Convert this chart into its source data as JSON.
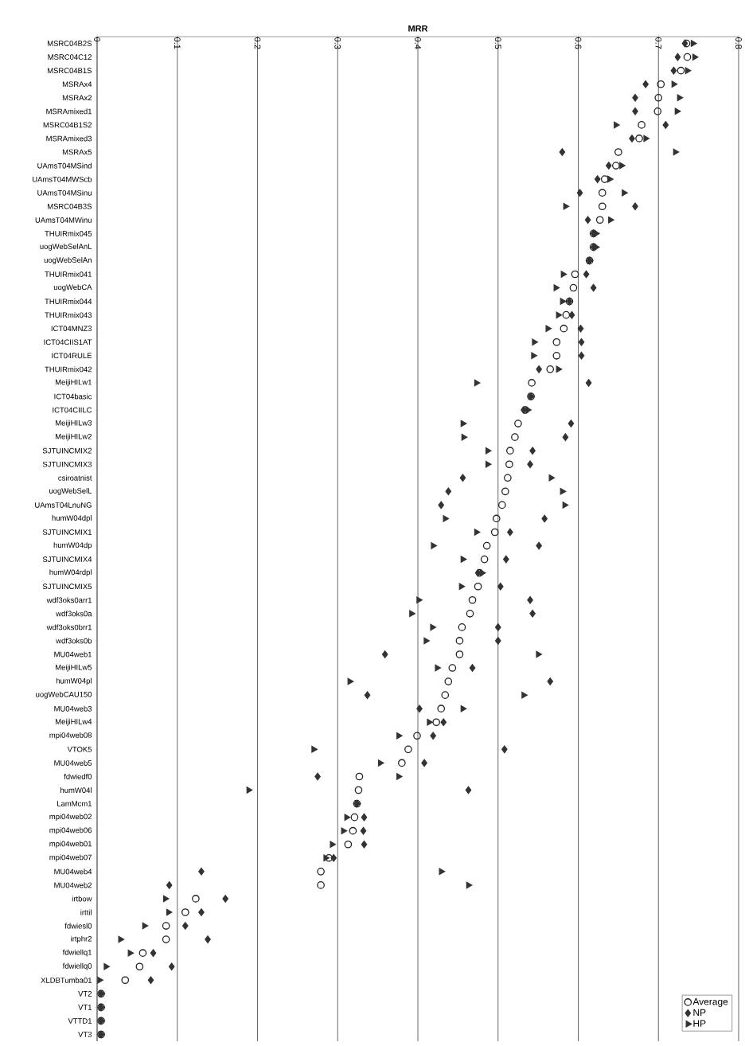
{
  "chart_data": {
    "type": "scatter",
    "orientation": "horizontal",
    "xlabel": "MRR",
    "categories": [
      "MSRC04B2S",
      "MSRC04C12",
      "MSRC04B1S",
      "MSRAx4",
      "MSRAx2",
      "MSRAmixed1",
      "MSRC04B1S2",
      "MSRAmixed3",
      "MSRAx5",
      "UAmsT04MSind",
      "UAmsT04MWScb",
      "UAmsT04MSinu",
      "MSRC04B3S",
      "UAmsT04MWinu",
      "THUIRmix045",
      "uogWebSelAnL",
      "uogWebSelAn",
      "THUIRmix041",
      "uogWebCA",
      "THUIRmix044",
      "THUIRmix043",
      "ICT04MNZ3",
      "ICT04CIIS1AT",
      "ICT04RULE",
      "THUIRmix042",
      "MeijiHILw1",
      "ICT04basic",
      "ICT04CIILC",
      "MeijiHILw3",
      "MeijiHILw2",
      "SJTUINCMIX2",
      "SJTUINCMIX3",
      "csiroatnist",
      "uogWebSelL",
      "UAmsT04LnuNG",
      "humW04dpl",
      "SJTUINCMIX1",
      "humW04dp",
      "SJTUINCMIX4",
      "humW04rdpl",
      "SJTUINCMIX5",
      "wdf3oks0arr1",
      "wdf3oks0a",
      "wdf3oks0brr1",
      "wdf3oks0b",
      "MU04web1",
      "MeijiHILw5",
      "humW04pl",
      "uogWebCAU150",
      "MU04web3",
      "MeijiHILw4",
      "mpi04web08",
      "VTOK5",
      "MU04web5",
      "fdwiedf0",
      "humW04l",
      "LamMcm1",
      "mpi04web02",
      "mpi04web06",
      "mpi04web01",
      "mpi04web07",
      "MU04web4",
      "MU04web2",
      "irtbow",
      "irttil",
      "fdwiesl0",
      "irtphr2",
      "fdwiellq1",
      "fdwiellq0",
      "XLDBTumba01",
      "VT2",
      "VT1",
      "VTTD1",
      "VT3"
    ],
    "series": [
      {
        "name": "Average",
        "color": "#222222",
        "marker": "circle",
        "values": [
          0.735,
          0.736,
          0.728,
          0.703,
          0.7,
          0.699,
          0.679,
          0.676,
          0.65,
          0.647,
          0.633,
          0.63,
          0.63,
          0.627,
          0.619,
          0.619,
          0.614,
          0.596,
          0.594,
          0.589,
          0.585,
          0.582,
          0.573,
          0.573,
          0.565,
          0.542,
          0.541,
          0.534,
          0.525,
          0.521,
          0.515,
          0.514,
          0.512,
          0.509,
          0.505,
          0.498,
          0.496,
          0.486,
          0.483,
          0.477,
          0.475,
          0.468,
          0.465,
          0.455,
          0.452,
          0.452,
          0.443,
          0.438,
          0.434,
          0.429,
          0.423,
          0.399,
          0.388,
          0.38,
          0.327,
          0.326,
          0.324,
          0.321,
          0.319,
          0.313,
          0.289,
          0.279,
          0.279,
          0.123,
          0.11,
          0.086,
          0.086,
          0.057,
          0.053,
          0.035,
          0.005,
          0.005,
          0.005,
          0.005
        ]
      },
      {
        "name": "NP",
        "color": "#333333",
        "marker": "diamond",
        "values": [
          0.733,
          0.724,
          0.719,
          0.684,
          0.671,
          0.671,
          0.709,
          0.667,
          0.58,
          0.638,
          0.624,
          0.602,
          0.671,
          0.612,
          0.619,
          0.619,
          0.614,
          0.61,
          0.619,
          0.589,
          0.592,
          0.603,
          0.604,
          0.604,
          0.551,
          0.613,
          0.541,
          0.532,
          0.591,
          0.584,
          0.543,
          0.54,
          0.456,
          0.438,
          0.429,
          0.558,
          0.515,
          0.551,
          0.51,
          0.475,
          0.503,
          0.54,
          0.543,
          0.5,
          0.5,
          0.359,
          0.468,
          0.565,
          0.337,
          0.402,
          0.432,
          0.419,
          0.508,
          0.408,
          0.275,
          0.463,
          0.324,
          0.333,
          0.332,
          0.333,
          0.295,
          0.13,
          0.09,
          0.16,
          0.13,
          0.11,
          0.138,
          0.07,
          0.093,
          0.067,
          0.005,
          0.005,
          0.005,
          0.005
        ]
      },
      {
        "name": "HP",
        "color": "#333333",
        "marker": "triangle",
        "values": [
          0.743,
          0.745,
          0.736,
          0.719,
          0.726,
          0.723,
          0.647,
          0.684,
          0.721,
          0.654,
          0.639,
          0.657,
          0.584,
          0.64,
          0.622,
          0.622,
          0.614,
          0.581,
          0.572,
          0.58,
          0.575,
          0.562,
          0.545,
          0.544,
          0.575,
          0.473,
          0.541,
          0.537,
          0.456,
          0.457,
          0.487,
          0.487,
          0.566,
          0.58,
          0.583,
          0.434,
          0.473,
          0.419,
          0.456,
          0.48,
          0.454,
          0.401,
          0.392,
          0.418,
          0.41,
          0.55,
          0.424,
          0.315,
          0.532,
          0.456,
          0.414,
          0.376,
          0.27,
          0.353,
          0.376,
          0.189,
          0.324,
          0.311,
          0.307,
          0.293,
          0.285,
          0.429,
          0.463,
          0.085,
          0.089,
          0.059,
          0.029,
          0.041,
          0.011,
          0.003,
          0.005,
          0.005,
          0.005,
          0.005
        ]
      }
    ],
    "xlim": [
      0,
      0.8
    ],
    "xticks": [
      0,
      0.1,
      0.2,
      0.3,
      0.4,
      0.5,
      0.6,
      0.7,
      0.8
    ],
    "grid": "x",
    "legend": "bottom right"
  }
}
